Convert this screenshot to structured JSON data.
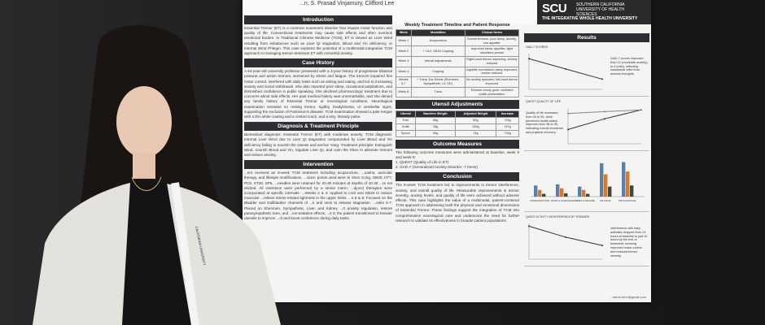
{
  "poster": {
    "authors": "...n, S. Prasad Vinjamury, Clifford Lee",
    "logo": {
      "mark": "SCU",
      "university": "SOUTHERN CALIFORNIA UNIVERSITY OF HEALTH SCIENCES",
      "institute": "THE INTEGRATIVE WHOLE HEALTH UNIVERSITY"
    },
    "sections": {
      "introduction": {
        "heading": "Introduction",
        "text": "Essential Tremor (ET) is a common movement disorder that impairs motor function and quality of life. Conventional treatments may cause side effects and often overlook emotional burden. In Traditional Chinese Medicine (TCM), ET is viewed as Liver Wind resulting from imbalances such as Liver Qi stagnation, Blood and Yin deficiency, or Internal Wind Phlegm. This case explores the potential of a multimodal integrative TCM approach in managing tremor-dominant ET with comorbid anxiety."
      },
      "case_history": {
        "heading": "Case History",
        "text": "A 64-year-old university professor presented with a 3-year history of progressive bilateral postural and action tremors, worsened by stress and fatigue. The tremors impaired fine motor control, interfered with daily tasks such as writing and eating, and led to increasing anxiety and social withdrawal. She also reported poor sleep, occasional palpitations, and diminished confidence in public speaking. She declined pharmacologic treatment due to concerns about side effects. Her past medical history was unremarkable, and she denied any family history of Essential Tremor or neurological conditions. Neurological examination revealed no resting tremor, rigidity, bradykinesia, or cerebellar signs, supporting the exclusion of Parkinson's disease. TCM examination showed a pale tongue with a thin white coating and a central crack, and a wiry, thready pulse."
      },
      "diagnosis": {
        "heading": "Diagnosis & Treatment Principle",
        "text": "Biomedical diagnosis: Essential Tremor (ET) with moderate anxiety. TCM diagnosis: Internal Liver Wind due to Liver Qi stagnation compounded by Liver Blood and Yin deficiency failing to nourish the sinews and anchor Yang. Treatment principle: Extinguish Wind, nourish Blood and Yin, regulate Liver Qi, and calm the Shen to alleviate tremors and reduce anxiety."
      },
      "intervention": {
        "heading": "Intervention",
        "text": "...ent received an 8-week TCM treatment including acupuncture, ...uasha, auricular therapy, and lifestyle modifications. ...cture: points used were Si Shen Cong, GB20, HT7, PC6, ST36, SP6, ...needles were retained for 20-30 minutes at depths of 10-25 ...re not elicited. All insertions were performed by a senior intern. ...djunct therapies were incorporated at specific intervals: ...Weeks 2 & 4: Applied to LI10 and GB34 to reduce muscular ...relieve stress-related tightness in the upper limbs. ...s 5 & 8: Focused on the Bladder and Gallbladder channels of ...k and neck to release stagnation. ...eeks 5-7: Placed on Shenmen, Sympathetic, Liver, and Kidney ...rt anxiety regulation, restore parasympathetic tone, and ...ion-sedation effects. ...k 3, the patient transitioned to heavier utensils to improve ...ol and boost confidence during daily tasks."
      },
      "timeline": {
        "heading": "Weekly Treatment Timeline and Patient Response",
        "columns": [
          "Week",
          "Modalities",
          "Clinical Notes"
        ],
        "rows": [
          [
            "Week 1",
            "Acupuncture",
            "Severe tremors, poor sleep, anxiety, low appetite"
          ],
          [
            "Week 2",
            "+ LI10, GB34 Cupping",
            "Improved sleep, appetite; tight shoulders persist"
          ],
          [
            "Week 3",
            "Utensil adjustments",
            "Right-hand tremor improving; anxiety reduced"
          ],
          [
            "Week 4",
            "Cupping",
            "Appetite normalized; sleep improved; tremor reduced"
          ],
          [
            "Weeks 5-7",
            "+ Tuina, Ear Seeds (Shenmen, Sympathetic, LV, KD)",
            "No anxiety episodes; left-hand tremor improved"
          ],
          [
            "Week 8",
            "Tuina",
            "Tremors nearly gone; confident public presentation"
          ]
        ]
      },
      "utensils": {
        "heading": "Utensil Adjustments",
        "columns": [
          "Utensil",
          "Baseline Weight",
          "Adjusted Weight",
          "Increase"
        ],
        "rows": [
          [
            "Fork",
            "55g",
            "80g",
            "+25g"
          ],
          [
            "Knife",
            "78g",
            "125g",
            "+47g"
          ],
          [
            "Spoon",
            "40g",
            "74g",
            "+34g"
          ]
        ]
      },
      "outcomes": {
        "heading": "Outcome Measures",
        "text": "The following outcome measures were administered at baseline, week 5 and week 8:",
        "items": [
          "1. QUEST (Quality of Life in ET)",
          "2. GAD-7 (Generalized Anxiety Disorder -7 Items)"
        ]
      },
      "conclusion": {
        "heading": "Conclusion",
        "text": "The 8-week TCM treatment led to improvements in tremor interference, anxiety, and overall quality of life. Measurable improvements in tremor severity, anxiety levels, and quality of life were achieved without adverse effects. This case highlights the value of a multimodal, patient-centered TCM approach in addressing both the physical and emotional dimensions of Essential Tremor. These findings support the integration of TCM into comprehensive neurological care and underscore the need for further research to validate its effectiveness in broader patient populations."
      },
      "results": {
        "heading": "Results",
        "gad_label": "GAD-7 SCORES",
        "gad_note": "GAD-7 scores improved from 12 (moderate anxiety) to 4 (mild), reflecting substantial relief from anxious thoughts.",
        "quest_label": "QUEST QUALITY OF LIFE",
        "quest_note": "Quality of life increased from 40 to 95, while perceived health status improved from 85 to 95, indicating overall emotional and physical recovery.",
        "domain_note": "",
        "interference_label": "QUEST ACTIVITY INTERFERENCE BY TREMORS",
        "interference_note": "Interference with daily activities dropped from 24 hours at baseline to just 10 hours by the end of treatment, showing improved motor control and reduced tremor severity."
      }
    },
    "email": "...harrin.trinh@gmail.com"
  },
  "chart_data": [
    {
      "type": "line",
      "title": "GAD-7 SCORES",
      "x": [
        "Baseline",
        "Week 5",
        "Week 8"
      ],
      "series": [
        {
          "values": [
            12,
            8,
            4
          ]
        }
      ]
    },
    {
      "type": "line",
      "title": "QUEST QUALITY OF LIFE",
      "x": [
        "Baseline",
        "Week 5",
        "Week 8"
      ],
      "series": [
        {
          "name": "Quality of Life",
          "values": [
            40,
            70,
            95
          ]
        },
        {
          "name": "Health Status",
          "values": [
            85,
            90,
            95
          ]
        }
      ]
    },
    {
      "type": "bar",
      "title": "",
      "categories": [
        "COMMUNICATION",
        "WORK & FINANCES",
        "HOBBIES & LEISURE",
        "PHYSICAL",
        "PSYCHOSOCIAL"
      ],
      "series": [
        {
          "name": "Baseline",
          "values": [
            20,
            22,
            18,
            60,
            62
          ]
        },
        {
          "name": "Week 5",
          "values": [
            12,
            15,
            12,
            40,
            45
          ]
        },
        {
          "name": "Week 8",
          "values": [
            5,
            6,
            5,
            18,
            20
          ]
        }
      ]
    },
    {
      "type": "line",
      "title": "QUEST ACTIVITY INTERFERENCE BY TREMORS",
      "x": [
        "Baseline",
        "Week 5",
        "Week 8"
      ],
      "series": [
        {
          "values": [
            24,
            16,
            10
          ]
        }
      ]
    }
  ],
  "colors": {
    "header": "#2f2f33",
    "poster": "#f4f4f2",
    "bar_orange": "#d9772c",
    "bar_blue": "#5b7fa8",
    "bar_dark": "#3a4a3a"
  },
  "lanyard_text": "CALIFORNIA UNIVERSITY"
}
